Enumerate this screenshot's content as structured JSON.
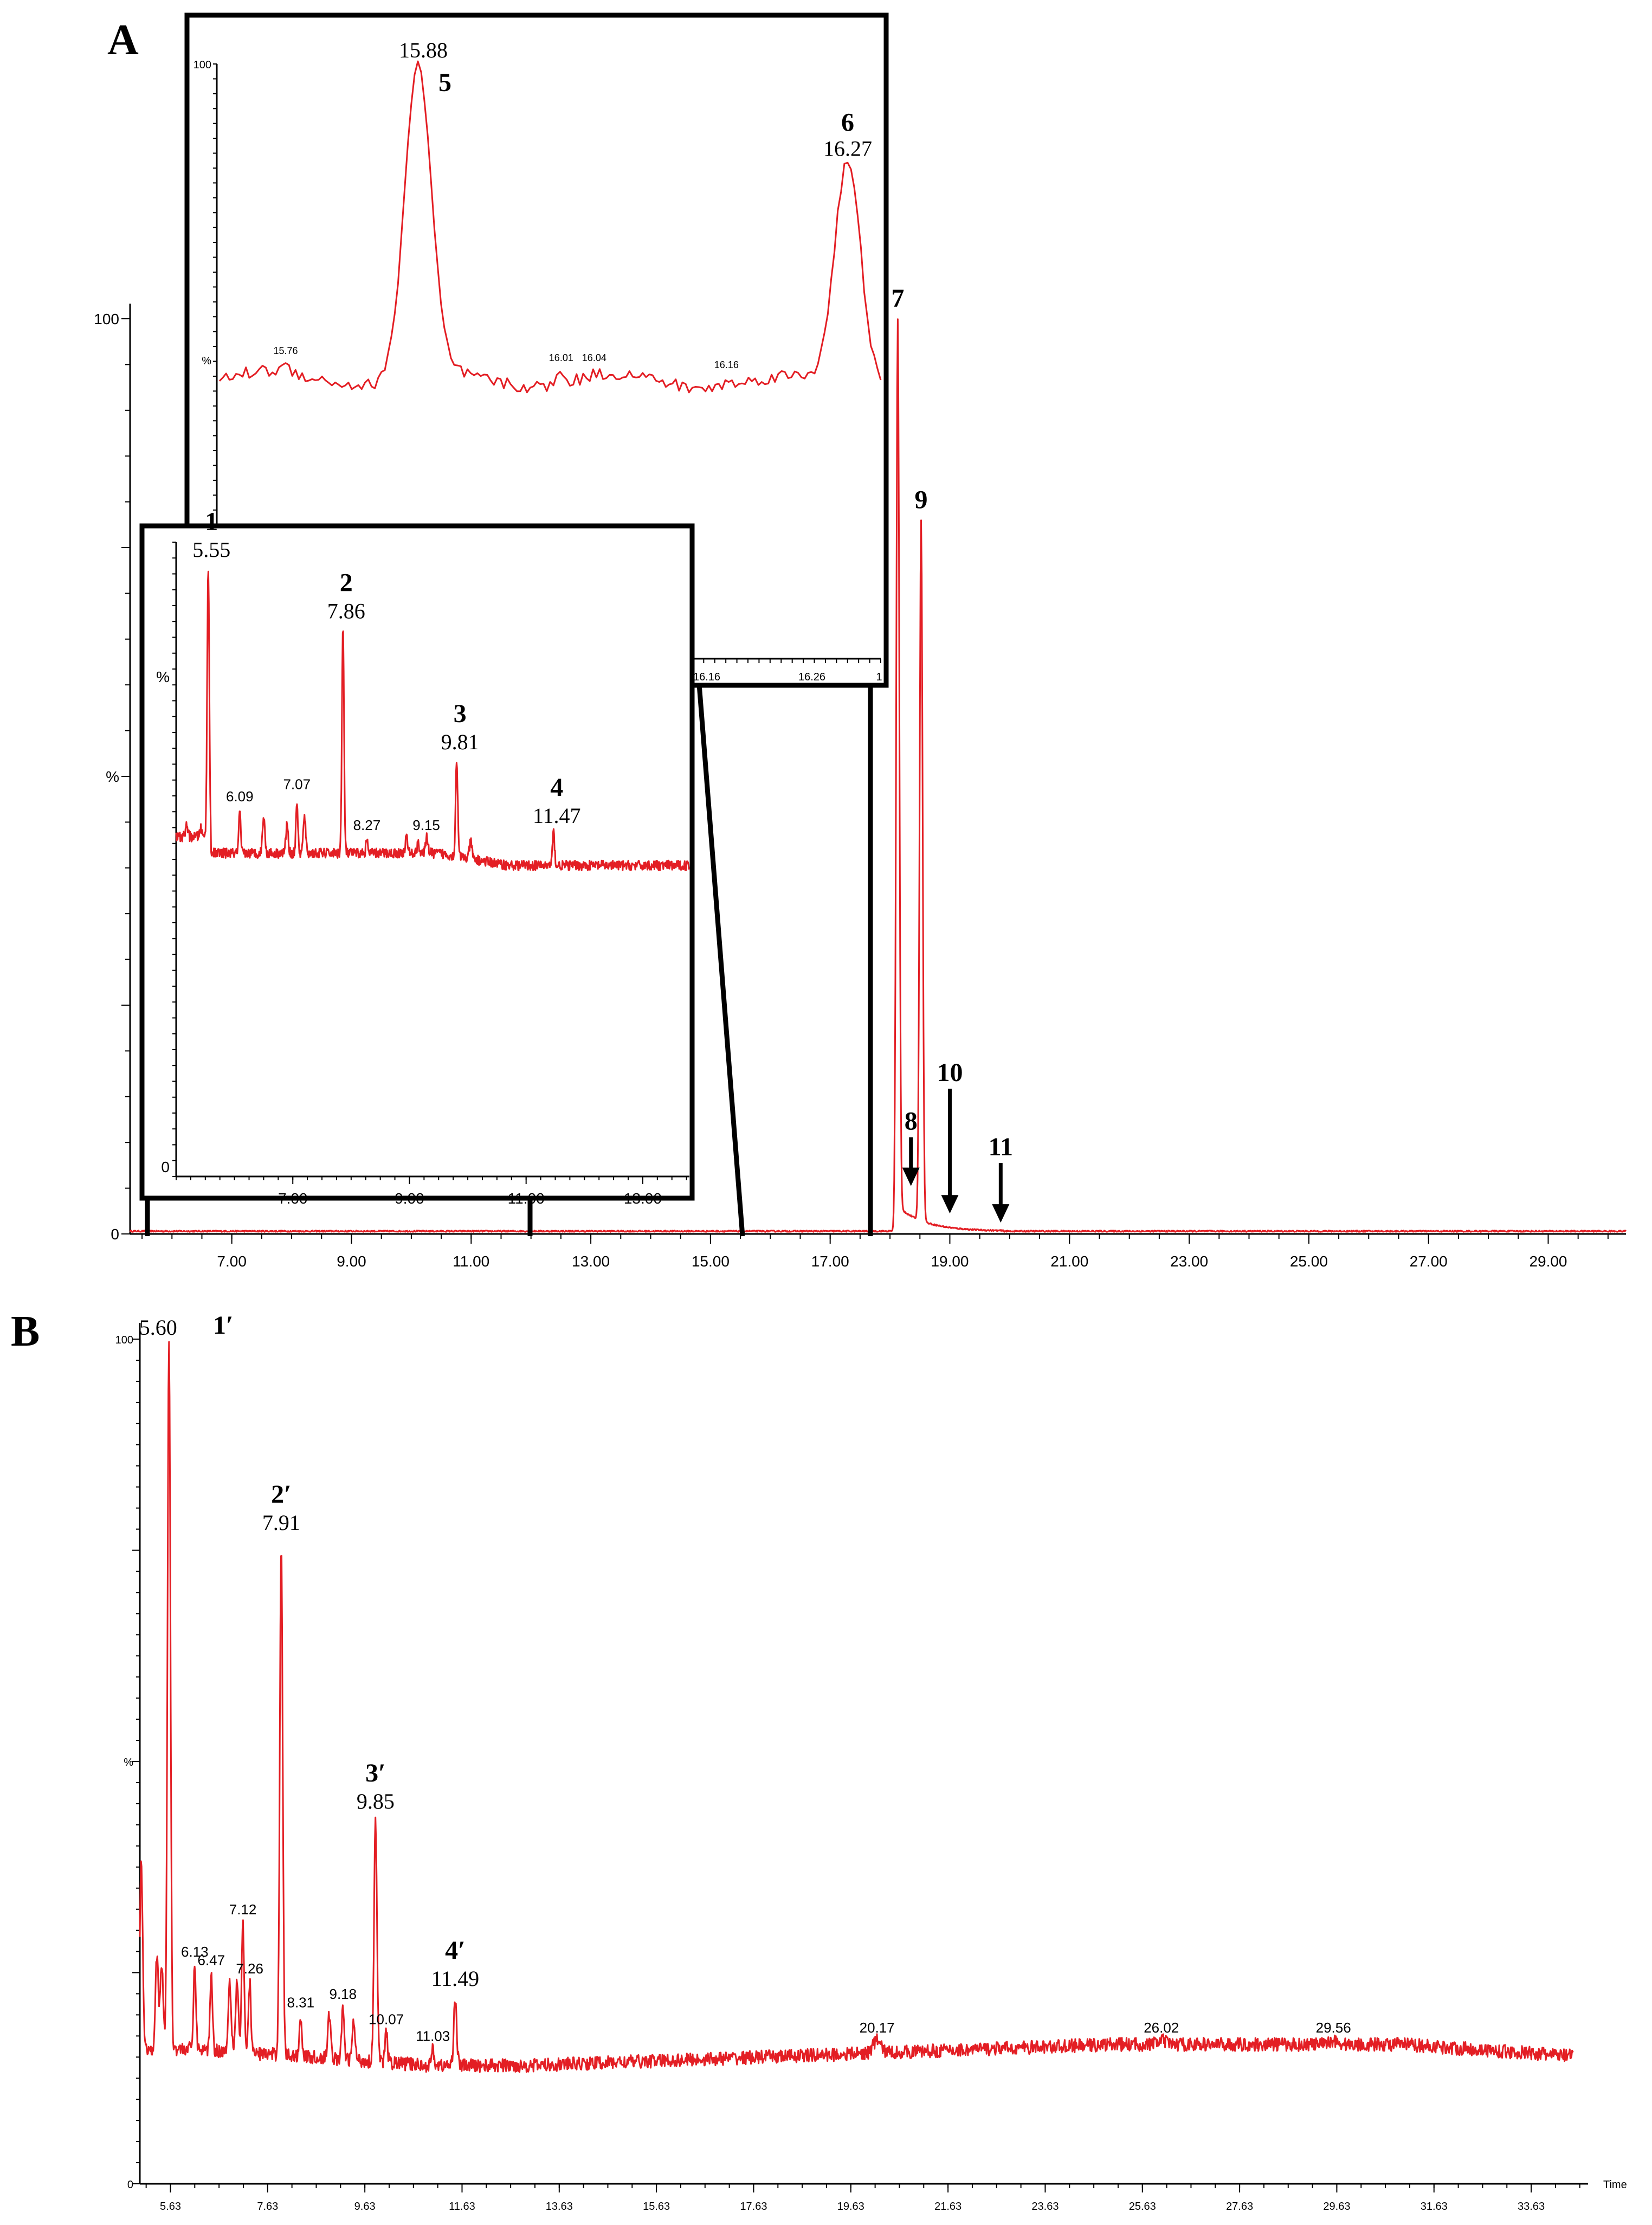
{
  "chart_data": [
    {
      "panel": "A",
      "type": "line",
      "xlabel": "",
      "ylabel": "%",
      "xlim": [
        5.3,
        30.3
      ],
      "ylim": [
        0,
        100
      ],
      "x_ticks": [
        "7.00",
        "9.00",
        "11.00",
        "13.00",
        "15.00",
        "17.00",
        "19.00",
        "21.00",
        "23.00",
        "25.00",
        "27.00",
        "29.00"
      ],
      "y_ticks": [
        "100",
        "0"
      ],
      "baseline": 0.3,
      "peaks": [
        {
          "num": "7",
          "x": 18.13,
          "y": 100
        },
        {
          "num": "9",
          "x": 18.52,
          "y": 78
        },
        {
          "num": "8",
          "x": 18.35,
          "y": 5,
          "arrow": true
        },
        {
          "num": "10",
          "x": 19.0,
          "y": 2,
          "arrow": true
        },
        {
          "num": "11",
          "x": 19.85,
          "y": 1,
          "arrow": true
        }
      ],
      "insets": [
        {
          "name": "inset-1",
          "xlim": [
            5.0,
            13.8
          ],
          "ylim": [
            0,
            100
          ],
          "x_ticks": [
            "7.00",
            "9.00",
            "11.00",
            "13.00"
          ],
          "y_ticks": [
            "%",
            "0"
          ],
          "peaks": [
            {
              "num": "1",
              "label": "5.55",
              "x": 5.55,
              "y": 94
            },
            {
              "num": "2",
              "label": "7.86",
              "x": 7.86,
              "y": 79
            },
            {
              "num": "3",
              "label": "9.81",
              "x": 9.81,
              "y": 47
            },
            {
              "num": "4",
              "label": "11.47",
              "x": 11.47,
              "y": 29
            }
          ],
          "minor_peaks": [
            {
              "label": "6.09",
              "x": 6.09,
              "y": 34
            },
            {
              "label": "7.07",
              "x": 7.07,
              "y": 37
            },
            {
              "label": "8.27",
              "x": 8.27,
              "y": 27
            },
            {
              "label": "9.15",
              "x": 9.15,
              "y": 27
            }
          ]
        },
        {
          "name": "inset-2",
          "xlim": [
            15.7,
            16.3
          ],
          "ylim": [
            0,
            100
          ],
          "x_ticks": [
            "16.16",
            "16.26",
            "1"
          ],
          "y_ticks": [
            "100",
            "%"
          ],
          "peaks": [
            {
              "num": "5",
              "label": "15.88",
              "x": 15.88,
              "y": 100
            },
            {
              "num": "6",
              "label": "16.27",
              "x": 16.27,
              "y": 72
            }
          ],
          "minor_peaks": [
            {
              "label": "15.76",
              "x": 15.76,
              "y": 8
            },
            {
              "label": "16.01",
              "x": 16.01,
              "y": 6
            },
            {
              "label": "16.04",
              "x": 16.04,
              "y": 6
            },
            {
              "label": "16.16",
              "x": 16.16,
              "y": 4
            }
          ]
        }
      ]
    },
    {
      "panel": "B",
      "type": "line",
      "xlabel": "Time",
      "ylabel": "%",
      "xlim": [
        5.0,
        34.8
      ],
      "ylim": [
        0,
        100
      ],
      "x_ticks": [
        "5.63",
        "7.63",
        "9.63",
        "11.63",
        "13.63",
        "15.63",
        "17.63",
        "19.63",
        "21.63",
        "23.63",
        "25.63",
        "27.63",
        "29.63",
        "31.63",
        "33.63"
      ],
      "y_ticks": [
        "100",
        "%",
        "0"
      ],
      "peaks": [
        {
          "num": "1′",
          "label": "5.60",
          "x": 5.6,
          "y": 100
        },
        {
          "num": "2′",
          "label": "7.91",
          "x": 7.91,
          "y": 76
        },
        {
          "num": "3′",
          "label": "9.85",
          "x": 9.85,
          "y": 43
        },
        {
          "num": "4′",
          "label": "11.49",
          "x": 11.49,
          "y": 22
        }
      ],
      "minor_peaks": [
        {
          "label": "6.13",
          "x": 6.13,
          "y": 26
        },
        {
          "label": "6.47",
          "x": 6.47,
          "y": 25
        },
        {
          "label": "7.12",
          "x": 7.12,
          "y": 31
        },
        {
          "label": "7.26",
          "x": 7.26,
          "y": 24
        },
        {
          "label": "8.31",
          "x": 8.31,
          "y": 20
        },
        {
          "label": "9.18",
          "x": 9.18,
          "y": 21
        },
        {
          "label": "10.07",
          "x": 10.07,
          "y": 18
        },
        {
          "label": "11.03",
          "x": 11.03,
          "y": 16
        },
        {
          "label": "20.17",
          "x": 20.17,
          "y": 17
        },
        {
          "label": "26.02",
          "x": 26.02,
          "y": 17
        },
        {
          "label": "29.56",
          "x": 29.56,
          "y": 17
        }
      ]
    }
  ]
}
